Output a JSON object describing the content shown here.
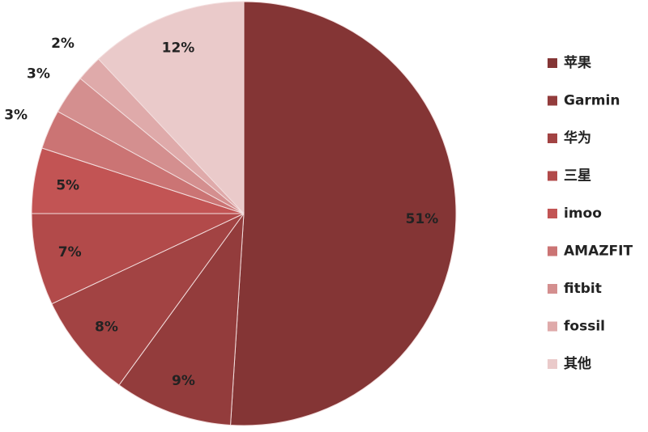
{
  "chart_data": {
    "type": "pie",
    "categories": [
      "苹果",
      "Garmin",
      "华为",
      "三星",
      "imoo",
      "AMAZFIT",
      "fitbit",
      "fossil",
      "其他"
    ],
    "values": [
      51,
      9,
      8,
      7,
      5,
      3,
      3,
      2,
      12
    ],
    "value_labels": [
      "51%",
      "9%",
      "8%",
      "7%",
      "5%",
      "3%",
      "3%",
      "2%",
      "12%"
    ],
    "colors": [
      "#843535",
      "#933c3c",
      "#a24343",
      "#b24a4a",
      "#c25454",
      "#cb7474",
      "#d48f8f",
      "#dfaaaa",
      "#eacaca"
    ],
    "legend": "right"
  }
}
